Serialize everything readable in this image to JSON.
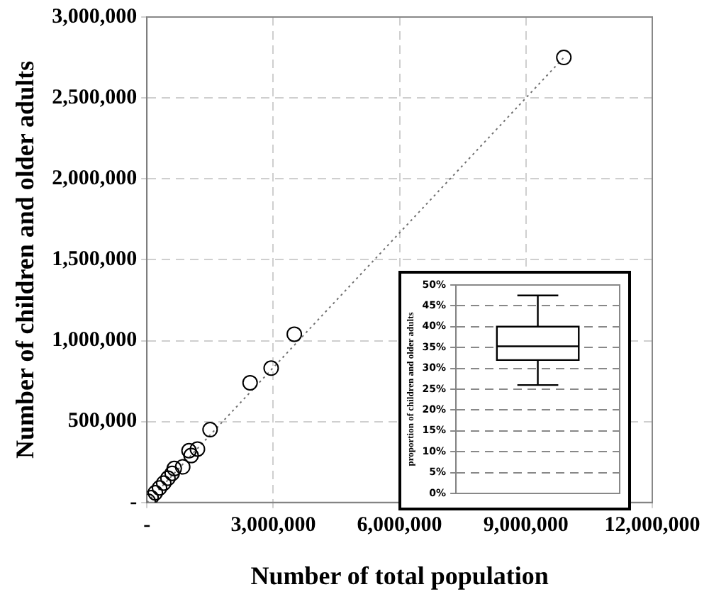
{
  "chart_data": [
    {
      "type": "scatter",
      "xlabel": "Number of total population",
      "ylabel": "Number of children and older adults",
      "series": [
        {
          "type": "scatter",
          "color": "#000000",
          "marker": "circle",
          "x": [
            9900000,
            3500000,
            2950000,
            2450000,
            1500000,
            1200000,
            1000000,
            1050000,
            850000,
            650000,
            600000,
            500000,
            400000,
            300000,
            200000,
            100000,
            30000
          ],
          "values": [
            2750000,
            1040000,
            830000,
            740000,
            450000,
            330000,
            320000,
            290000,
            220000,
            210000,
            180000,
            150000,
            120000,
            90000,
            60000,
            30000,
            8000
          ]
        },
        {
          "type": "line",
          "color": "#707070",
          "line_style": "dotted",
          "marker": "none",
          "x": [
            0,
            9900000
          ],
          "values": [
            0,
            2750000
          ]
        }
      ],
      "xlim": [
        0,
        12000000
      ],
      "xticks": [
        {
          "value": 0,
          "label": "-"
        },
        {
          "value": 3000000,
          "label": "3,000,000"
        },
        {
          "value": 6000000,
          "label": "6,000,000"
        },
        {
          "value": 9000000,
          "label": "9,000,000"
        },
        {
          "value": 12000000,
          "label": "12,000,000"
        }
      ],
      "ylim": [
        0,
        3000000
      ],
      "yticks": [
        {
          "value": 0,
          "label": "-"
        },
        {
          "value": 500000,
          "label": "500,000"
        },
        {
          "value": 1000000,
          "label": "1,000,000"
        },
        {
          "value": 1500000,
          "label": "1,500,000"
        },
        {
          "value": 2000000,
          "label": "2,000,000"
        },
        {
          "value": 2500000,
          "label": "2,500,000"
        },
        {
          "value": 3000000,
          "label": "3,000,000"
        }
      ],
      "grid": true
    },
    {
      "type": "box",
      "ylabel": "proportion of children and older adults",
      "categories": [
        null
      ],
      "boxes": [
        {
          "low": 26,
          "q1": 32,
          "median": 35.3,
          "q3": 40,
          "high": 47.5
        }
      ],
      "ylim": [
        0,
        50
      ],
      "yticks": [
        {
          "value": 0,
          "label": "0%"
        },
        {
          "value": 5,
          "label": "5%"
        },
        {
          "value": 10,
          "label": "10%"
        },
        {
          "value": 15,
          "label": "15%"
        },
        {
          "value": 20,
          "label": "20%"
        },
        {
          "value": 25,
          "label": "25%"
        },
        {
          "value": 30,
          "label": "30%"
        },
        {
          "value": 35,
          "label": "35%"
        },
        {
          "value": 40,
          "label": "40%"
        },
        {
          "value": 45,
          "label": "45%"
        },
        {
          "value": 50,
          "label": "50%"
        }
      ],
      "grid": "y"
    }
  ]
}
